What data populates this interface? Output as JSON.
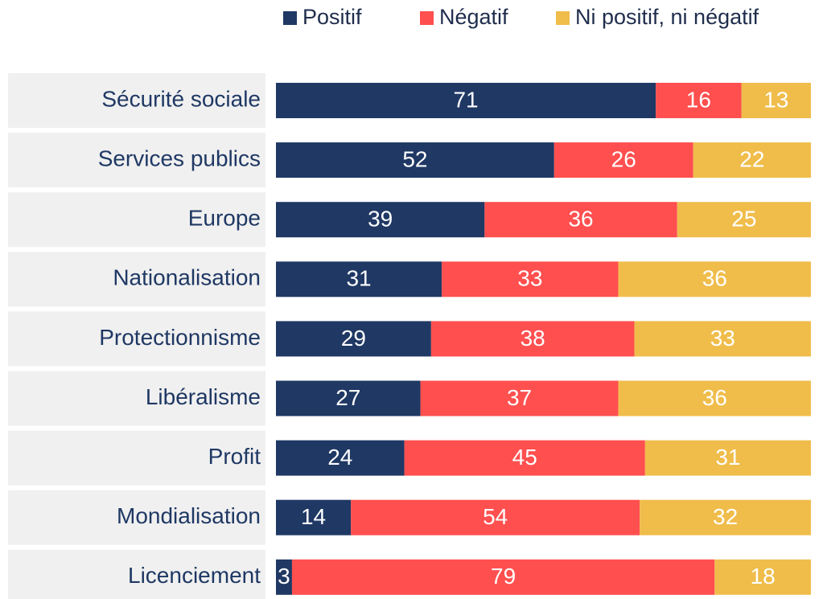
{
  "chart_data": {
    "type": "stacked-bar-horizontal",
    "categories": [
      "Sécurité sociale",
      "Services publics",
      "Europe",
      "Nationalisation",
      "Protectionnisme",
      "Libéralisme",
      "Profit",
      "Mondialisation",
      "Licenciement"
    ],
    "series": [
      {
        "name": "Positif",
        "color": "#1f3864",
        "values": [
          71,
          52,
          39,
          31,
          29,
          27,
          24,
          14,
          3
        ]
      },
      {
        "name": "Négatif",
        "color": "#ff4f4f",
        "values": [
          16,
          26,
          36,
          33,
          38,
          37,
          45,
          54,
          79
        ]
      },
      {
        "name": "Ni positif, ni négatif",
        "color": "#f0bd4b",
        "values": [
          13,
          22,
          25,
          36,
          33,
          36,
          31,
          32,
          18
        ]
      }
    ],
    "legend": "top-right"
  }
}
